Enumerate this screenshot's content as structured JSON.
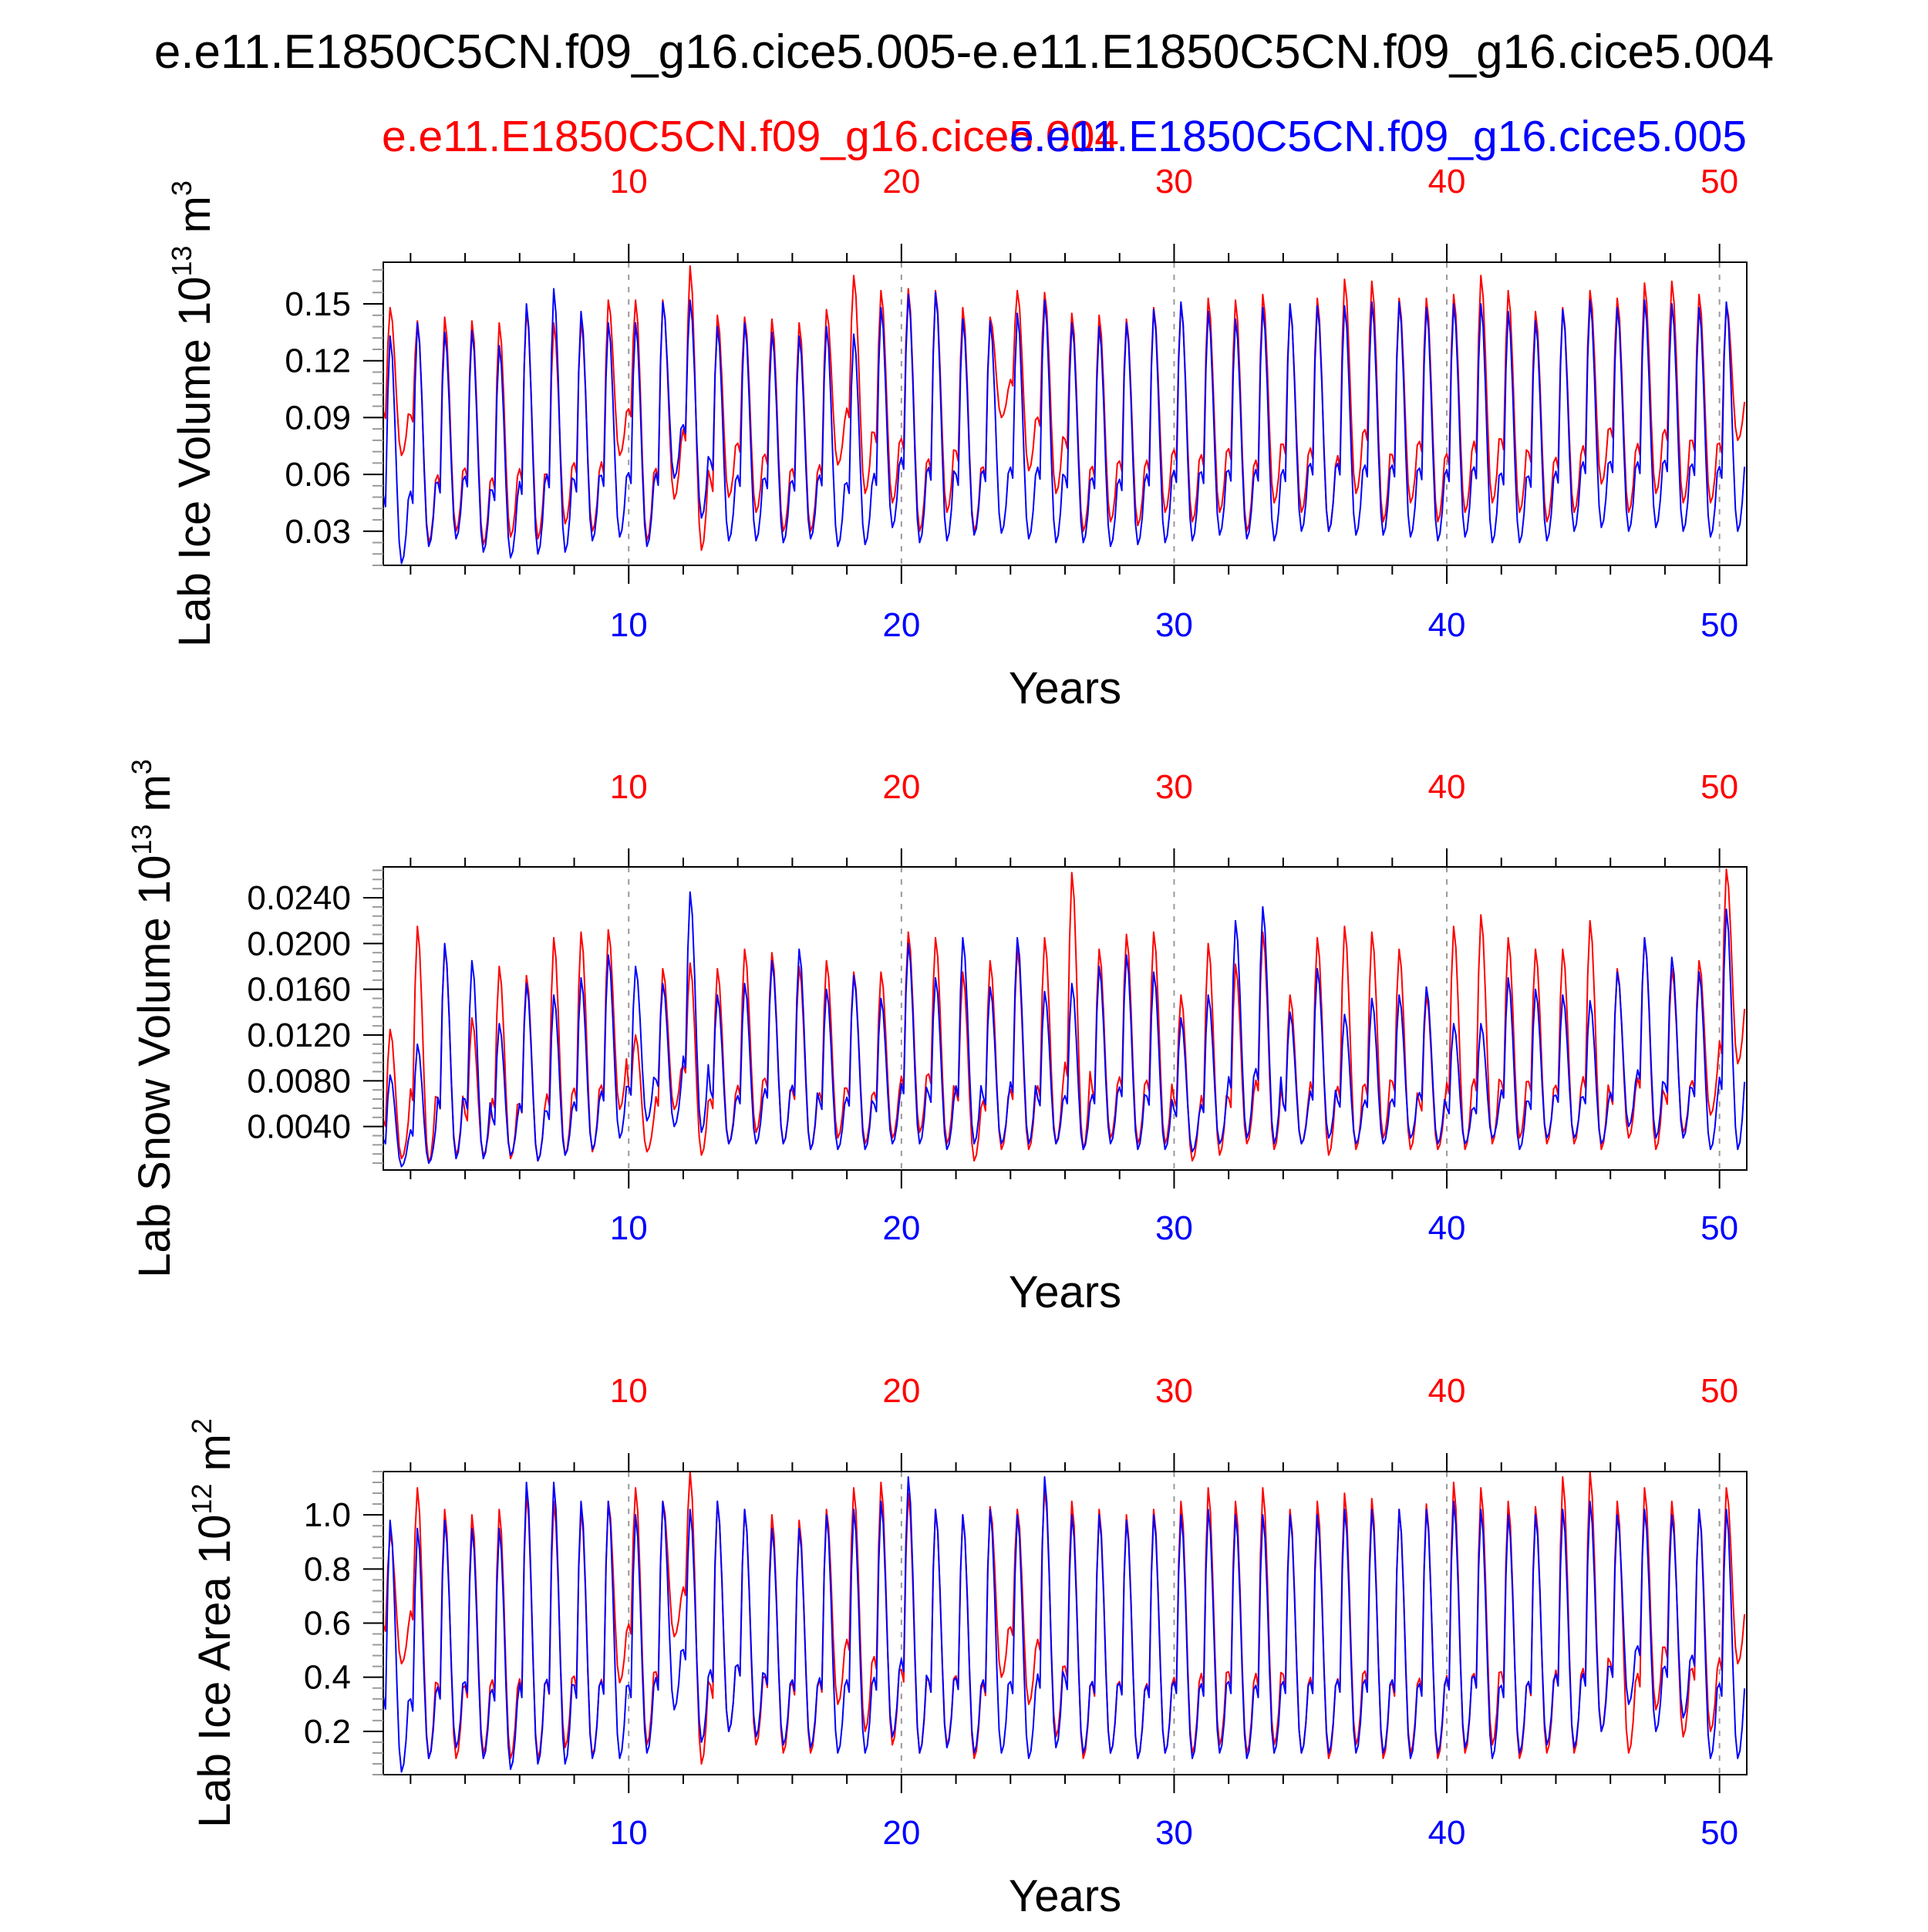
{
  "figure": {
    "title": "e.e11.E1850C5CN.f09_g16.cice5.005-e.e11.E1850C5CN.f09_g16.cice5.004",
    "legend_red": "e.e11.E1850C5CN.f09_g16.cice5.004",
    "legend_blue": "e.e11.E1850C5CN.f09_g16.cice5.005",
    "colors": {
      "red": "#ff0000",
      "blue": "#0000ff",
      "axis": "#000000",
      "grid": "#9a9a9a"
    }
  },
  "chart_data": [
    {
      "type": "line",
      "name": "ice-volume",
      "ylabel_main": "Lab Ice Volume 10",
      "ylabel_exp": "13",
      "ylabel_unit": " m",
      "ylabel_unit_exp": "3",
      "xlabel": "Years",
      "xlim": [
        1,
        51
      ],
      "ylim": [
        0.012,
        0.172
      ],
      "yticks": [
        0.03,
        0.06,
        0.09,
        0.12,
        0.15
      ],
      "ytick_labels": [
        "0.03",
        "0.06",
        "0.09",
        "0.12",
        "0.15"
      ],
      "xticks": [
        10,
        20,
        30,
        40,
        50
      ],
      "xtick_labels": [
        "10",
        "20",
        "30",
        "40",
        "50"
      ],
      "series": [
        {
          "name": "e.e11.E1850C5CN.f09_g16.cice5.004",
          "color": "#ff0000",
          "annual_max": [
            0.148,
            0.141,
            0.143,
            0.141,
            0.14,
            0.147,
            0.14,
            0.141,
            0.152,
            0.152,
            0.152,
            0.17,
            0.144,
            0.143,
            0.142,
            0.14,
            0.147,
            0.165,
            0.157,
            0.158,
            0.157,
            0.148,
            0.143,
            0.157,
            0.156,
            0.145,
            0.144,
            0.142,
            0.148,
            0.15,
            0.153,
            0.152,
            0.155,
            0.148,
            0.153,
            0.163,
            0.162,
            0.153,
            0.153,
            0.155,
            0.165,
            0.157,
            0.146,
            0.148,
            0.157,
            0.153,
            0.161,
            0.162,
            0.155,
            0.15
          ],
          "annual_min": [
            0.07,
            0.024,
            0.03,
            0.023,
            0.027,
            0.026,
            0.034,
            0.03,
            0.07,
            0.025,
            0.047,
            0.02,
            0.048,
            0.04,
            0.03,
            0.03,
            0.065,
            0.05,
            0.045,
            0.03,
            0.04,
            0.03,
            0.09,
            0.062,
            0.05,
            0.03,
            0.035,
            0.033,
            0.04,
            0.035,
            0.04,
            0.03,
            0.045,
            0.04,
            0.03,
            0.05,
            0.035,
            0.045,
            0.035,
            0.04,
            0.045,
            0.04,
            0.035,
            0.04,
            0.055,
            0.04,
            0.05,
            0.045,
            0.045,
            0.078
          ]
        },
        {
          "name": "e.e11.E1850C5CN.f09_g16.cice5.005",
          "color": "#0000ff",
          "annual_max": [
            0.133,
            0.14,
            0.135,
            0.136,
            0.128,
            0.15,
            0.158,
            0.146,
            0.14,
            0.14,
            0.151,
            0.152,
            0.138,
            0.14,
            0.135,
            0.133,
            0.138,
            0.134,
            0.148,
            0.155,
            0.156,
            0.142,
            0.141,
            0.145,
            0.152,
            0.14,
            0.138,
            0.14,
            0.147,
            0.151,
            0.146,
            0.142,
            0.148,
            0.15,
            0.149,
            0.149,
            0.151,
            0.151,
            0.148,
            0.15,
            0.15,
            0.146,
            0.141,
            0.147,
            0.152,
            0.148,
            0.152,
            0.15,
            0.148,
            0.151
          ],
          "annual_min": [
            0.013,
            0.022,
            0.026,
            0.019,
            0.016,
            0.018,
            0.019,
            0.025,
            0.027,
            0.022,
            0.058,
            0.037,
            0.025,
            0.025,
            0.024,
            0.026,
            0.022,
            0.023,
            0.032,
            0.024,
            0.025,
            0.028,
            0.029,
            0.026,
            0.024,
            0.024,
            0.022,
            0.023,
            0.024,
            0.025,
            0.028,
            0.026,
            0.025,
            0.03,
            0.03,
            0.028,
            0.028,
            0.027,
            0.025,
            0.027,
            0.024,
            0.024,
            0.025,
            0.03,
            0.032,
            0.03,
            0.032,
            0.03,
            0.027,
            0.03
          ]
        }
      ]
    },
    {
      "type": "line",
      "name": "snow-volume",
      "ylabel_main": "Lab Snow Volume 10",
      "ylabel_exp": "13",
      "ylabel_unit": " m",
      "ylabel_unit_exp": "3",
      "xlabel": "Years",
      "xlim": [
        1,
        51
      ],
      "ylim": [
        0.0002,
        0.0267
      ],
      "yticks": [
        0.004,
        0.008,
        0.012,
        0.016,
        0.02,
        0.024
      ],
      "ytick_labels": [
        "0.0040",
        "0.0080",
        "0.0120",
        "0.0160",
        "0.0200",
        "0.0240"
      ],
      "xticks": [
        10,
        20,
        30,
        40,
        50
      ],
      "xtick_labels": [
        "10",
        "20",
        "30",
        "40",
        "50"
      ],
      "series": [
        {
          "name": "e.e11.E1850C5CN.f09_g16.cice5.004",
          "color": "#ff0000",
          "annual_max": [
            0.0125,
            0.0215,
            0.0198,
            0.0135,
            0.018,
            0.0172,
            0.0205,
            0.021,
            0.0212,
            0.012,
            0.0178,
            0.0183,
            0.0178,
            0.0195,
            0.0192,
            0.018,
            0.0185,
            0.0175,
            0.0175,
            0.021,
            0.0205,
            0.0175,
            0.0185,
            0.0195,
            0.0205,
            0.0262,
            0.0195,
            0.0208,
            0.021,
            0.0155,
            0.02,
            0.0182,
            0.021,
            0.0155,
            0.0205,
            0.0215,
            0.021,
            0.0195,
            0.0155,
            0.0215,
            0.0225,
            0.0205,
            0.0195,
            0.0195,
            0.022,
            0.0178,
            0.0205,
            0.0178,
            0.0185,
            0.0265
          ],
          "annual_min": [
            0.0012,
            0.0008,
            0.0015,
            0.0015,
            0.0012,
            0.001,
            0.0015,
            0.0018,
            0.0055,
            0.0018,
            0.0055,
            0.0015,
            0.0025,
            0.0035,
            0.0025,
            0.002,
            0.003,
            0.0025,
            0.003,
            0.0035,
            0.0025,
            0.001,
            0.002,
            0.002,
            0.0025,
            0.002,
            0.003,
            0.0025,
            0.0025,
            0.001,
            0.0015,
            0.0025,
            0.002,
            0.0025,
            0.0015,
            0.002,
            0.003,
            0.002,
            0.002,
            0.002,
            0.0025,
            0.003,
            0.0025,
            0.0025,
            0.002,
            0.003,
            0.002,
            0.0035,
            0.005,
            0.0095
          ]
        },
        {
          "name": "e.e11.E1850C5CN.f09_g16.cice5.005",
          "color": "#0000ff",
          "annual_max": [
            0.0085,
            0.0112,
            0.02,
            0.0185,
            0.013,
            0.0165,
            0.0155,
            0.017,
            0.019,
            0.018,
            0.0165,
            0.0245,
            0.0155,
            0.0165,
            0.0185,
            0.0195,
            0.016,
            0.0172,
            0.0152,
            0.02,
            0.017,
            0.0205,
            0.0162,
            0.0205,
            0.0158,
            0.0165,
            0.018,
            0.019,
            0.0175,
            0.0135,
            0.0155,
            0.022,
            0.0232,
            0.014,
            0.0178,
            0.0138,
            0.0152,
            0.0155,
            0.0162,
            0.013,
            0.013,
            0.017,
            0.016,
            0.0155,
            0.015,
            0.0175,
            0.0205,
            0.0188,
            0.0175,
            0.023
          ],
          "annual_min": [
            0.0005,
            0.0008,
            0.0012,
            0.0012,
            0.0015,
            0.001,
            0.0015,
            0.002,
            0.003,
            0.0045,
            0.004,
            0.0035,
            0.0025,
            0.0025,
            0.0025,
            0.002,
            0.002,
            0.002,
            0.0025,
            0.0025,
            0.002,
            0.0025,
            0.0025,
            0.0025,
            0.0025,
            0.002,
            0.0025,
            0.002,
            0.002,
            0.0018,
            0.0025,
            0.003,
            0.0025,
            0.0025,
            0.003,
            0.0025,
            0.0025,
            0.003,
            0.0025,
            0.0025,
            0.003,
            0.002,
            0.003,
            0.003,
            0.0025,
            0.004,
            0.003,
            0.003,
            0.002,
            0.002
          ]
        }
      ]
    },
    {
      "type": "line",
      "name": "ice-area",
      "ylabel_main": "Lab Ice Area 10",
      "ylabel_exp": "12",
      "ylabel_unit": " m",
      "ylabel_unit_exp": "2",
      "xlabel": "Years",
      "xlim": [
        1,
        51
      ],
      "ylim": [
        0.04,
        1.16
      ],
      "yticks": [
        0.2,
        0.4,
        0.6,
        0.8,
        1.0
      ],
      "ytick_labels": [
        "0.2",
        "0.4",
        "0.6",
        "0.8",
        "1.0"
      ],
      "xticks": [
        10,
        20,
        30,
        40,
        50
      ],
      "xtick_labels": [
        "10",
        "20",
        "30",
        "40",
        "50"
      ],
      "series": [
        {
          "name": "e.e11.E1850C5CN.f09_g16.cice5.004",
          "color": "#ff0000",
          "annual_max": [
            0.93,
            1.1,
            1.02,
            1.0,
            1.02,
            1.08,
            1.05,
            1.02,
            1.05,
            1.1,
            1.05,
            1.16,
            1.05,
            1.02,
            1.0,
            0.98,
            1.02,
            1.1,
            1.12,
            1.08,
            1.02,
            1.0,
            1.03,
            1.02,
            1.1,
            1.05,
            1.02,
            1.0,
            1.02,
            1.05,
            1.1,
            1.05,
            1.1,
            1.02,
            1.05,
            1.08,
            1.06,
            1.02,
            1.04,
            1.12,
            1.1,
            1.05,
            1.03,
            1.14,
            1.16,
            1.05,
            1.1,
            1.05,
            1.02,
            1.1
          ],
          "annual_min": [
            0.45,
            0.1,
            0.1,
            0.12,
            0.1,
            0.1,
            0.14,
            0.11,
            0.38,
            0.15,
            0.55,
            0.08,
            0.2,
            0.15,
            0.12,
            0.12,
            0.3,
            0.2,
            0.15,
            0.12,
            0.15,
            0.1,
            0.4,
            0.3,
            0.18,
            0.1,
            0.12,
            0.1,
            0.12,
            0.12,
            0.15,
            0.12,
            0.15,
            0.12,
            0.1,
            0.15,
            0.1,
            0.12,
            0.1,
            0.12,
            0.15,
            0.1,
            0.12,
            0.12,
            0.2,
            0.12,
            0.28,
            0.18,
            0.2,
            0.45
          ]
        },
        {
          "name": "e.e11.E1850C5CN.f09_g16.cice5.005",
          "color": "#0000ff",
          "annual_max": [
            0.98,
            0.95,
            0.98,
            0.95,
            0.95,
            1.12,
            1.12,
            1.05,
            1.05,
            1.0,
            1.05,
            1.02,
            1.05,
            1.02,
            0.95,
            0.95,
            1.0,
            1.02,
            1.05,
            1.14,
            1.02,
            1.0,
            1.02,
            1.0,
            1.14,
            1.0,
            1.0,
            0.98,
            1.0,
            1.0,
            1.02,
            1.0,
            1.0,
            1.0,
            1.0,
            1.02,
            1.02,
            1.02,
            1.02,
            1.05,
            1.02,
            1.0,
            1.0,
            1.02,
            1.05,
            1.0,
            1.02,
            1.0,
            1.02,
            1.02
          ],
          "annual_min": [
            0.05,
            0.1,
            0.14,
            0.1,
            0.06,
            0.08,
            0.08,
            0.1,
            0.1,
            0.12,
            0.28,
            0.16,
            0.2,
            0.18,
            0.15,
            0.14,
            0.12,
            0.12,
            0.18,
            0.12,
            0.14,
            0.12,
            0.12,
            0.1,
            0.14,
            0.12,
            0.12,
            0.1,
            0.12,
            0.1,
            0.12,
            0.1,
            0.12,
            0.12,
            0.12,
            0.12,
            0.12,
            0.1,
            0.12,
            0.14,
            0.1,
            0.12,
            0.15,
            0.14,
            0.2,
            0.3,
            0.2,
            0.25,
            0.1,
            0.1
          ]
        }
      ]
    }
  ]
}
